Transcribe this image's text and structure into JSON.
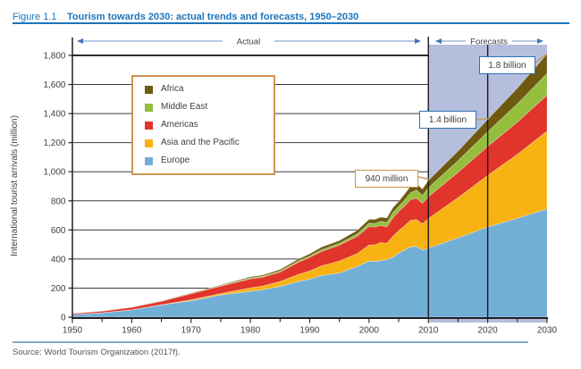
{
  "figure": {
    "label": "Figure 1.1",
    "title": "Tourism towards 2030: actual trends and forecasts, 1950–2030"
  },
  "source": "Source: World Tourism Organization (2017f).",
  "chart_data": {
    "type": "area",
    "stacked": true,
    "title": "Tourism towards 2030: actual trends and forecasts, 1950–2030",
    "xlabel": "",
    "ylabel": "International tourist arrivals (million)",
    "xlim": [
      1950,
      2030
    ],
    "ylim": [
      0,
      1800
    ],
    "grid": "horizontal",
    "x_ticks": [
      1950,
      1960,
      1970,
      1980,
      1990,
      2000,
      2010,
      2020,
      2030
    ],
    "x_minor_tick_step": 5,
    "y_ticks": [
      0,
      200,
      400,
      600,
      800,
      1000,
      1200,
      1400,
      1600,
      1800
    ],
    "y_tick_labels": [
      "0",
      "200",
      "400",
      "600",
      "800",
      "1,000",
      "1,200",
      "1,400",
      "1,600",
      "1,800"
    ],
    "x": [
      1950,
      1955,
      1960,
      1965,
      1970,
      1975,
      1980,
      1982,
      1985,
      1988,
      1990,
      1992,
      1995,
      1998,
      2000,
      2001,
      2002,
      2003,
      2004,
      2005,
      2006,
      2007,
      2008,
      2009,
      2010,
      2015,
      2020,
      2025,
      2030
    ],
    "series": [
      {
        "name": "Europe",
        "color": "#72afd7",
        "values": [
          17,
          30,
          50,
          84,
          113,
          153,
          178,
          187,
          212,
          245,
          262,
          287,
          304,
          348,
          386,
          383,
          390,
          395,
          412,
          441,
          462,
          484,
          487,
          461,
          475,
          545,
          620,
          680,
          744
        ]
      },
      {
        "name": "Asia and the Pacific",
        "color": "#f8b211",
        "values": [
          0.2,
          0.4,
          0.9,
          2.1,
          6.2,
          10.2,
          23,
          27,
          33,
          48,
          56,
          66,
          82,
          89,
          110,
          115,
          124,
          113,
          144,
          154,
          167,
          182,
          184,
          181,
          204,
          277,
          355,
          440,
          535
        ]
      },
      {
        "name": "Americas",
        "color": "#e1342a",
        "values": [
          7.5,
          11,
          17,
          23,
          42,
          50,
          62,
          60,
          65,
          83,
          93,
          100,
          109,
          119,
          128,
          122,
          117,
          113,
          126,
          133,
          136,
          143,
          148,
          141,
          150,
          174,
          199,
          222,
          248
        ]
      },
      {
        "name": "Middle East",
        "color": "#95be3d",
        "values": [
          0.2,
          0.5,
          0.6,
          1.3,
          1.9,
          3.5,
          7.1,
          7.5,
          8,
          9,
          9.6,
          11,
          12.7,
          16,
          22.4,
          23.6,
          27.6,
          30,
          36.3,
          33.7,
          40.9,
          46.7,
          55.2,
          52.4,
          60.3,
          80,
          101,
          125,
          149
        ]
      },
      {
        "name": "Africa",
        "color": "#6e5a11",
        "values": [
          0.5,
          0.8,
          0.8,
          1.4,
          2.4,
          4.7,
          7.2,
          7.6,
          9.7,
          12.5,
          15,
          18,
          19,
          25,
          26.2,
          28.9,
          29.5,
          30.7,
          33.4,
          34.8,
          41.4,
          45,
          44.4,
          46,
          50.4,
          66,
          85,
          108,
          134
        ]
      }
    ],
    "legend": [
      {
        "label": "Africa"
      },
      {
        "label": "Middle East"
      },
      {
        "label": "Americas"
      },
      {
        "label": "Asia and the Pacific"
      },
      {
        "label": "Europe"
      }
    ],
    "legend_position": "upper-left",
    "annotations": {
      "actual_label": "Actual",
      "forecasts_label": "Forecasts",
      "actual_span": [
        1950,
        2010
      ],
      "forecast_span": [
        2010,
        2030
      ],
      "vertical_line_years": [
        2010,
        2020
      ],
      "callouts": [
        {
          "text": "940 million",
          "year": 2010,
          "value": 940
        },
        {
          "text": "1.4 billion",
          "year": 2020,
          "value": 1400
        },
        {
          "text": "1.8 billion",
          "year": 2030,
          "value": 1800
        }
      ]
    },
    "colors": {
      "forecast_band": "#b6bedd",
      "gridline": "#3c3c3e",
      "gridline_top": "#2b2b2d",
      "axis": "#231f20",
      "text": "#414042",
      "title_blue": "#1b75bc",
      "arrow_line": "#9fb9da",
      "arrow_head": "#4573b9",
      "connector": "#c89a62",
      "callout_border_orange": "#cd9551",
      "callout_border_blue": "#2e74b4",
      "source_rule": "#84a9c8"
    }
  }
}
